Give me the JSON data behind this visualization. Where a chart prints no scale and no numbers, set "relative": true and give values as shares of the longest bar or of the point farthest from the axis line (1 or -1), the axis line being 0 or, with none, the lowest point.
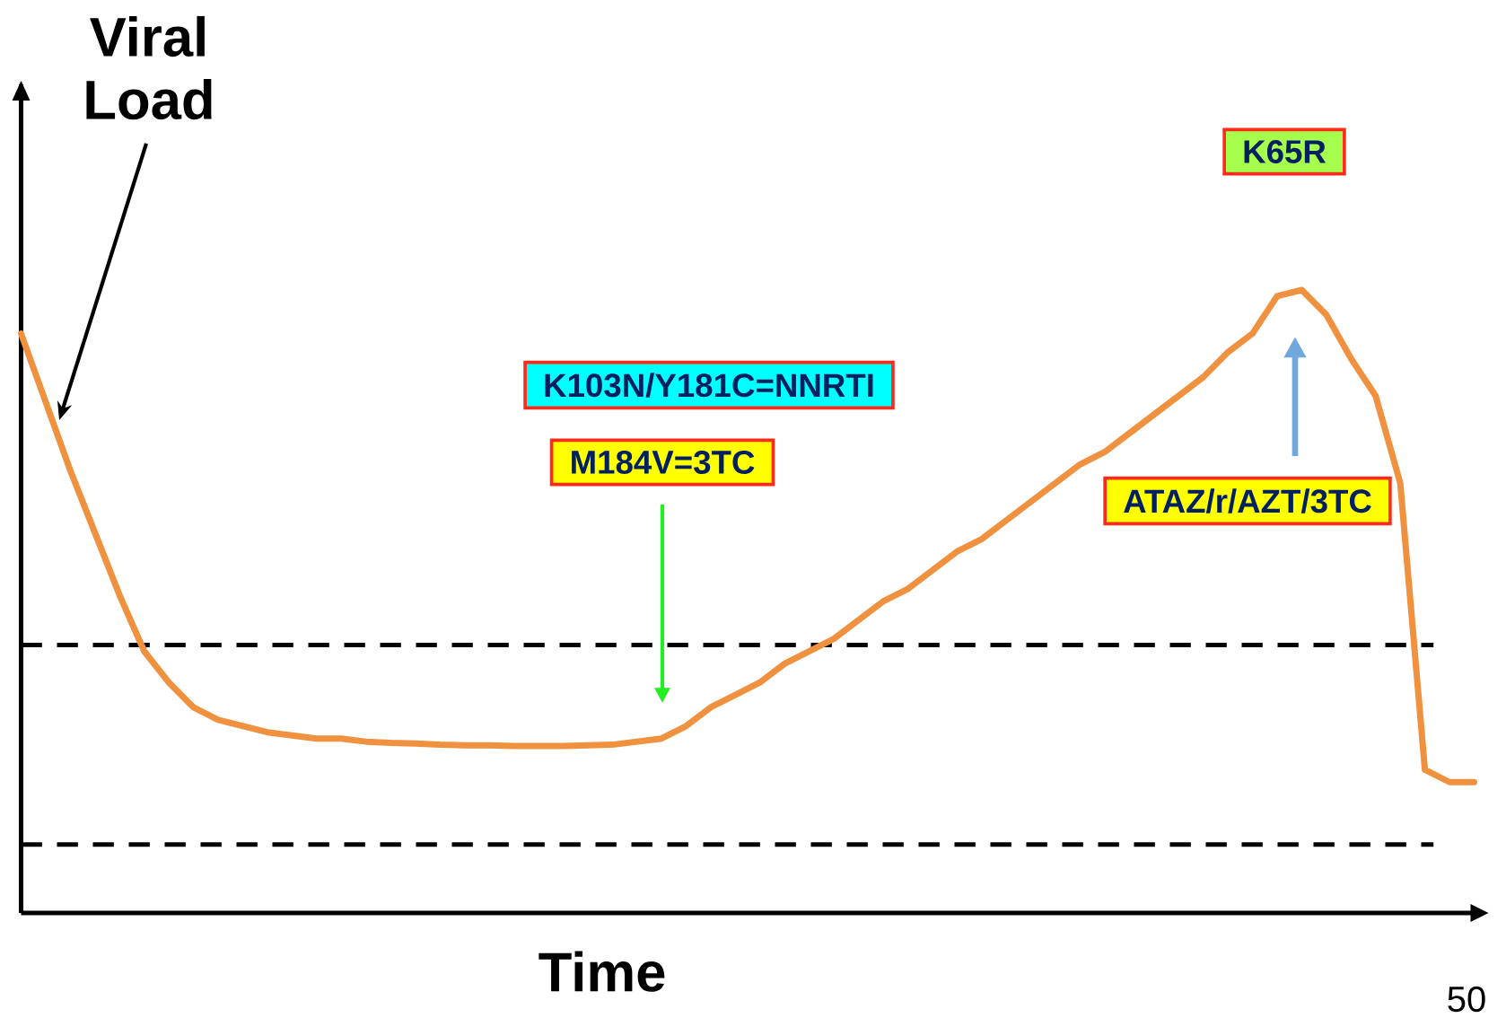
{
  "chart_data": {
    "type": "line",
    "relative": true,
    "xlabel": "Time",
    "ylabel": "Viral Load",
    "categories": [
      null,
      null,
      null,
      null,
      null,
      null,
      null,
      null,
      null,
      null,
      null,
      null,
      null,
      null,
      null,
      null,
      null,
      null,
      null,
      null,
      null,
      null,
      null,
      null,
      null,
      null,
      null,
      null,
      null,
      null,
      null,
      null,
      null,
      null,
      null,
      null,
      null,
      null,
      null,
      null,
      null,
      null,
      null,
      null,
      null,
      null,
      null,
      null,
      null,
      null,
      null,
      null,
      null,
      null,
      null,
      null,
      null,
      null,
      null,
      null
    ],
    "series": [
      {
        "color": "#f0913f",
        "values": [
          0.93,
          0.82,
          0.71,
          0.61,
          0.51,
          0.42,
          0.37,
          0.33,
          0.31,
          0.3,
          0.29,
          0.285,
          0.28,
          0.28,
          0.275,
          0.273,
          0.272,
          0.27,
          0.269,
          0.269,
          0.268,
          0.268,
          0.268,
          0.269,
          0.27,
          0.275,
          0.28,
          0.3,
          0.33,
          0.35,
          0.37,
          0.4,
          0.42,
          0.44,
          0.47,
          0.5,
          0.52,
          0.55,
          0.58,
          0.6,
          0.63,
          0.66,
          0.69,
          0.72,
          0.74,
          0.77,
          0.8,
          0.83,
          0.86,
          0.9,
          0.93,
          0.99,
          1,
          0.96,
          0.89,
          0.83,
          0.69,
          0.23,
          0.21,
          0.21
        ]
      }
    ],
    "ref_lines": [
      {
        "axis": "y",
        "value": 0.43,
        "line_style": "dashed",
        "color": "#000000"
      },
      {
        "axis": "y",
        "value": 0.11,
        "line_style": "dashed",
        "color": "#000000"
      }
    ],
    "annotations": [
      "K103N/Y181C=NNRTI",
      "M184V=3TC",
      "K65R",
      "ATAZ/r/AZT/3TC",
      "50"
    ]
  }
}
